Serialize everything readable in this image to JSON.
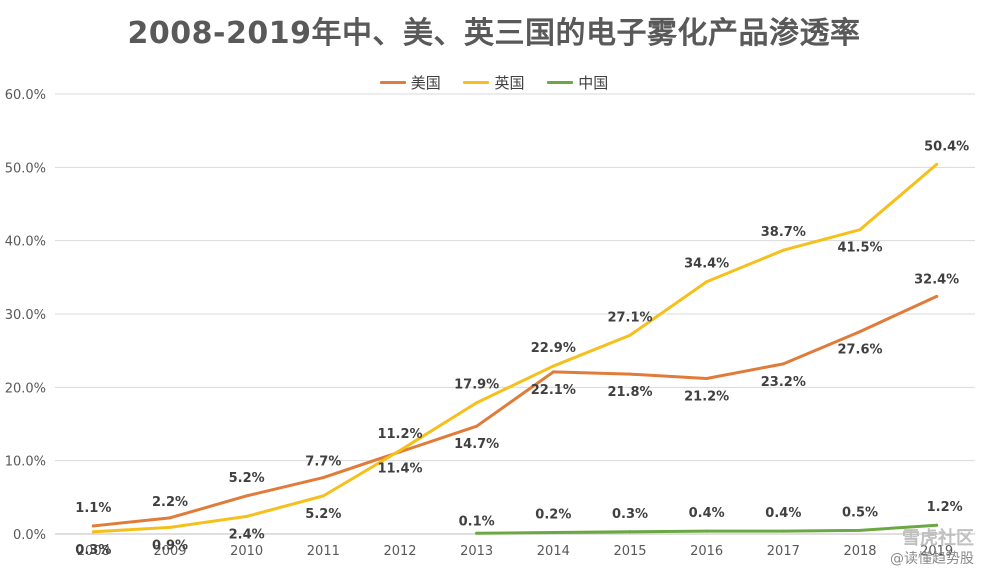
{
  "chart_data": {
    "type": "line",
    "title": "2008-2019年中、美、英三国的电子雾化产品渗透率",
    "categories": [
      "2008",
      "2009",
      "2010",
      "2011",
      "2012",
      "2013",
      "2014",
      "2015",
      "2016",
      "2017",
      "2018",
      "2019"
    ],
    "y_ticks": [
      "0.0%",
      "10.0%",
      "20.0%",
      "30.0%",
      "40.0%",
      "50.0%",
      "60.0%"
    ],
    "ylim": [
      0,
      60
    ],
    "grid": true,
    "legend_position": "top",
    "series": [
      {
        "name": "美国",
        "color": "#E07B39",
        "values": [
          1.1,
          2.2,
          5.2,
          7.7,
          11.2,
          14.7,
          22.1,
          21.8,
          21.2,
          23.2,
          27.6,
          32.4
        ],
        "labels": [
          "1.1%",
          "2.2%",
          "5.2%",
          "7.7%",
          "11.2%",
          "14.7%",
          "22.1%",
          "21.8%",
          "21.2%",
          "23.2%",
          "27.6%",
          "32.4%"
        ]
      },
      {
        "name": "英国",
        "color": "#F5C01B",
        "values": [
          0.3,
          0.9,
          2.4,
          5.2,
          11.4,
          17.9,
          22.9,
          27.1,
          34.4,
          38.7,
          41.5,
          50.4
        ],
        "labels": [
          "0.3%",
          "0.9%",
          "2.4%",
          "5.2%",
          "11.4%",
          "17.9%",
          "22.9%",
          "27.1%",
          "34.4%",
          "38.7%",
          "41.5%",
          "50.4%"
        ]
      },
      {
        "name": "中国",
        "color": "#6BA843",
        "values": [
          null,
          null,
          null,
          null,
          null,
          0.1,
          0.2,
          0.3,
          0.4,
          0.4,
          0.5,
          1.2
        ],
        "labels": [
          null,
          null,
          null,
          null,
          null,
          "0.1%",
          "0.2%",
          "0.3%",
          "0.4%",
          "0.4%",
          "0.5%",
          "1.2%"
        ]
      }
    ]
  },
  "watermark": {
    "brand": "雪虎社区",
    "handle": "@读懂趋势股"
  }
}
